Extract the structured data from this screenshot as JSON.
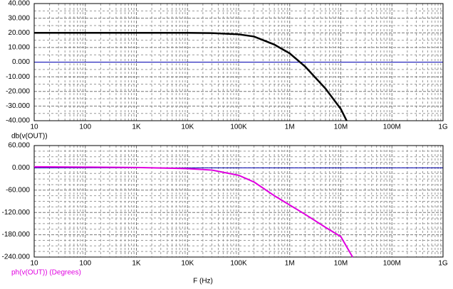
{
  "chart_data": [
    {
      "type": "line",
      "xscale": "log",
      "grid": true,
      "x": [
        10,
        100,
        1000,
        10000,
        30000,
        100000,
        200000,
        500000,
        1000000,
        2000000,
        5000000,
        10000000,
        13000000
      ],
      "series": [
        {
          "name": "db(v(OUT))",
          "color": "#000000",
          "values": [
            20,
            20,
            20,
            20,
            19.8,
            19,
            17.5,
            12,
            6,
            -3,
            -18,
            -32,
            -40
          ]
        }
      ],
      "xlim": [
        10,
        1000000000
      ],
      "xticks": [
        10,
        100,
        {
          "value": 1000,
          "label": "1K"
        },
        {
          "value": 10000,
          "label": "10K"
        },
        {
          "value": 100000,
          "label": "100K"
        },
        {
          "value": 1000000,
          "label": "1M"
        },
        {
          "value": 10000000,
          "label": "10M"
        },
        {
          "value": 100000000,
          "label": "100M"
        },
        {
          "value": 1000000000,
          "label": "1G"
        }
      ],
      "ylim": [
        -40,
        40
      ],
      "yticks": [
        {
          "value": -40,
          "label": "-40.000"
        },
        {
          "value": -30,
          "label": "-30.000"
        },
        {
          "value": -20,
          "label": "-20.000"
        },
        {
          "value": -10,
          "label": "-10.000"
        },
        {
          "value": 0,
          "label": "0.000"
        },
        {
          "value": 10,
          "label": "10.000"
        },
        {
          "value": 20,
          "label": "20.000"
        },
        {
          "value": 30,
          "label": "30.000"
        },
        {
          "value": 40,
          "label": "40.000"
        }
      ],
      "zero_line_color": "#0000b0"
    },
    {
      "type": "line",
      "xscale": "log",
      "grid": true,
      "xlabel": "F (Hz)",
      "x": [
        10,
        100,
        1000,
        10000,
        30000,
        100000,
        200000,
        500000,
        1000000,
        2000000,
        5000000,
        10000000,
        17000000
      ],
      "series": [
        {
          "name": "ph(v(OUT)) (Degrees)",
          "color": "#e000e0",
          "values": [
            3,
            2,
            1,
            -2,
            -6,
            -20,
            -38,
            -75,
            -100,
            -125,
            -160,
            -185,
            -240
          ]
        }
      ],
      "xlim": [
        10,
        1000000000
      ],
      "xticks": [
        10,
        100,
        {
          "value": 1000,
          "label": "1K"
        },
        {
          "value": 10000,
          "label": "10K"
        },
        {
          "value": 100000,
          "label": "100K"
        },
        {
          "value": 1000000,
          "label": "1M"
        },
        {
          "value": 10000000,
          "label": "10M"
        },
        {
          "value": 100000000,
          "label": "100M"
        },
        {
          "value": 1000000000,
          "label": "1G"
        }
      ],
      "ylim": [
        -240,
        60
      ],
      "yticks": [
        {
          "value": -240,
          "label": "-240.000"
        },
        {
          "value": -180,
          "label": "-180.000"
        },
        {
          "value": -120,
          "label": "-120.000"
        },
        {
          "value": -60,
          "label": "-60.000"
        },
        {
          "value": 0,
          "label": "0.000"
        },
        {
          "value": 60,
          "label": "60.000"
        }
      ],
      "zero_line_color": "#0000b0"
    }
  ]
}
